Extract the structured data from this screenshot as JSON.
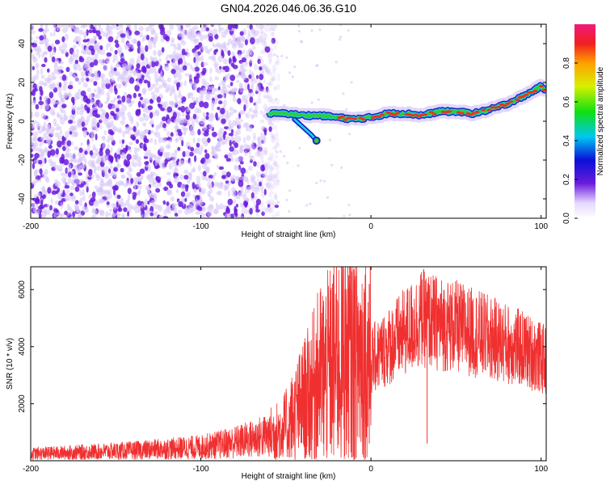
{
  "title": "GN04.2026.046.06.36.G10",
  "colors": {
    "snr_line": "#f03030",
    "scatter_dense": "#6a1bdc",
    "scatter_light": "#d6c4f7",
    "track_high": "#e8331c",
    "track_mid": "#2ecc3b",
    "track_low": "#1a24c8"
  },
  "chart_data": [
    {
      "type": "heatmap",
      "xlabel": "Height of straight line (km)",
      "ylabel": "Frequency (Hz)",
      "xlim": [
        -200,
        103
      ],
      "ylim": [
        -50,
        50
      ],
      "xticks": [
        -200,
        -100,
        0,
        100
      ],
      "yticks": [
        -40,
        -20,
        0,
        20,
        40
      ],
      "grid": false,
      "noise_region_x": [
        -200,
        -60
      ],
      "track": {
        "x": [
          -60,
          -50,
          -40,
          -30,
          -20,
          -10,
          0,
          10,
          20,
          30,
          40,
          50,
          60,
          70,
          80,
          90,
          100,
          103
        ],
        "y": [
          4,
          4,
          3,
          3,
          2,
          1,
          2,
          4,
          4,
          3,
          5,
          5,
          4,
          6,
          9,
          13,
          18,
          16
        ]
      },
      "branch": {
        "x": [
          -45,
          -40,
          -35,
          -32
        ],
        "y": [
          1,
          -3,
          -7,
          -10
        ]
      },
      "colorbar": {
        "label": "Normalized spectral amplitude",
        "ticks": [
          "0.0",
          "0.2",
          "0.4",
          "0.6",
          "0.8"
        ],
        "range": [
          0,
          1
        ]
      }
    },
    {
      "type": "line",
      "xlabel": "Height of straight line (km)",
      "ylabel": "SNR (10 * v/v)",
      "xlim": [
        -200,
        103
      ],
      "ylim": [
        0,
        6800
      ],
      "xticks": [
        -200,
        -100,
        0,
        100
      ],
      "yticks": [
        2000,
        4000,
        6000
      ],
      "grid": false,
      "series": [
        {
          "x": [
            -200,
            -180,
            -160,
            -140,
            -120,
            -100,
            -90,
            -80,
            -70,
            -60,
            -55,
            -50,
            -45,
            -40,
            -35,
            -30,
            -25,
            -20,
            -15,
            -10,
            -5,
            0,
            10,
            20,
            30,
            40,
            50,
            60,
            70,
            80,
            90,
            100,
            103
          ],
          "values": [
            250,
            280,
            320,
            360,
            420,
            480,
            560,
            650,
            760,
            900,
            1000,
            1200,
            1600,
            2000,
            2400,
            3000,
            3200,
            3500,
            3700,
            3600,
            3700,
            3500,
            4000,
            4500,
            5000,
            4800,
            4700,
            4500,
            4300,
            4100,
            3900,
            3600,
            3500
          ]
        }
      ],
      "spikes": [
        {
          "x": -10,
          "y": 6700
        },
        {
          "x": -1,
          "y": 6200
        },
        {
          "x": -13,
          "y": 6500
        },
        {
          "x": -24,
          "y": 5600
        },
        {
          "x": -28,
          "y": 5000
        },
        {
          "x": 33,
          "y": 5500
        }
      ]
    }
  ]
}
